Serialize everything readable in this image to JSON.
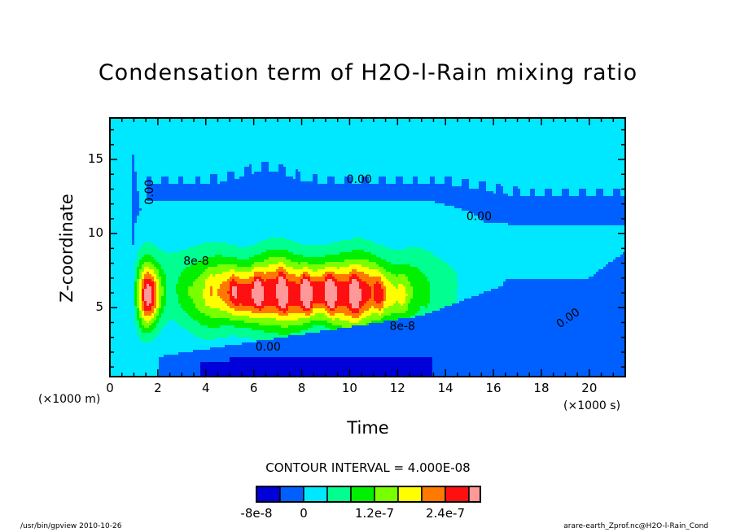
{
  "chart_data": {
    "type": "heatmap",
    "title": "Condensation term of H2O-l-Rain mixing ratio",
    "xlabel": "Time",
    "ylabel": "Z-coordinate",
    "x_unit": "(×1000 s)",
    "y_unit": "(×1000 m)",
    "xlim": [
      0,
      21.5
    ],
    "ylim": [
      0.35,
      17.8
    ],
    "x_ticks": [
      0,
      2,
      4,
      6,
      8,
      10,
      12,
      14,
      16,
      18,
      20
    ],
    "y_ticks": [
      5,
      10,
      15
    ],
    "x_minor_step": 0.5,
    "y_minor_step": 1,
    "contour_interval": "CONTOUR INTERVAL = 4.000E-08",
    "levels": [
      -8e-08,
      -4e-08,
      0,
      4e-08,
      8e-08,
      1.2e-07,
      1.6e-07,
      2e-07,
      2.4e-07,
      2.8e-07,
      3.2e-07
    ],
    "colorbar": {
      "colors": [
        "#0000d8",
        "#0060ff",
        "#00e8ff",
        "#00ff90",
        "#00f000",
        "#78ff00",
        "#ffff00",
        "#ff7800",
        "#ff1010",
        "#ff9898"
      ],
      "labels": [
        {
          "text": "-8e-8",
          "level_index": 0
        },
        {
          "text": "0",
          "level_index": 2
        },
        {
          "text": "1.2e-7",
          "level_index": 5
        },
        {
          "text": "2.4e-7",
          "level_index": 8
        }
      ]
    },
    "contour_labels": [
      {
        "text": "0.00",
        "x": 1.8,
        "z": 12.8,
        "rotate": -90
      },
      {
        "text": "0.00",
        "x": 10.4,
        "z": 13.4
      },
      {
        "text": "0.00",
        "x": 15.4,
        "z": 10.9
      },
      {
        "text": "8e-8",
        "x": 3.6,
        "z": 7.9
      },
      {
        "text": "8e-8",
        "x": 12.2,
        "z": 3.5
      },
      {
        "text": "0.00",
        "x": 6.6,
        "z": 2.1
      },
      {
        "text": "0.00",
        "x": 19.2,
        "z": 4.1,
        "rotate": -35
      }
    ],
    "features": [
      {
        "name": "upper stratiform band",
        "x_range": [
          1.5,
          21.5
        ],
        "z_range": [
          11,
          14.5
        ],
        "value_class": "-4e-8..0"
      },
      {
        "name": "convective condensation core",
        "x_range": [
          1,
          13.5
        ],
        "z_range": [
          3.5,
          9
        ],
        "peak": ">2.8e-7",
        "peak_x": 9,
        "peak_z": 5.8
      },
      {
        "name": "lower evaporation zone",
        "x_range": [
          2,
          21.5
        ],
        "z_range": [
          0.35,
          4.5
        ],
        "value_class": "-8e-8..-4e-8"
      }
    ]
  },
  "footer": {
    "left": "/usr/bin/gpview   2010-10-26",
    "right": "arare-earth_Zprof.nc@H2O-l-Rain_Cond"
  }
}
